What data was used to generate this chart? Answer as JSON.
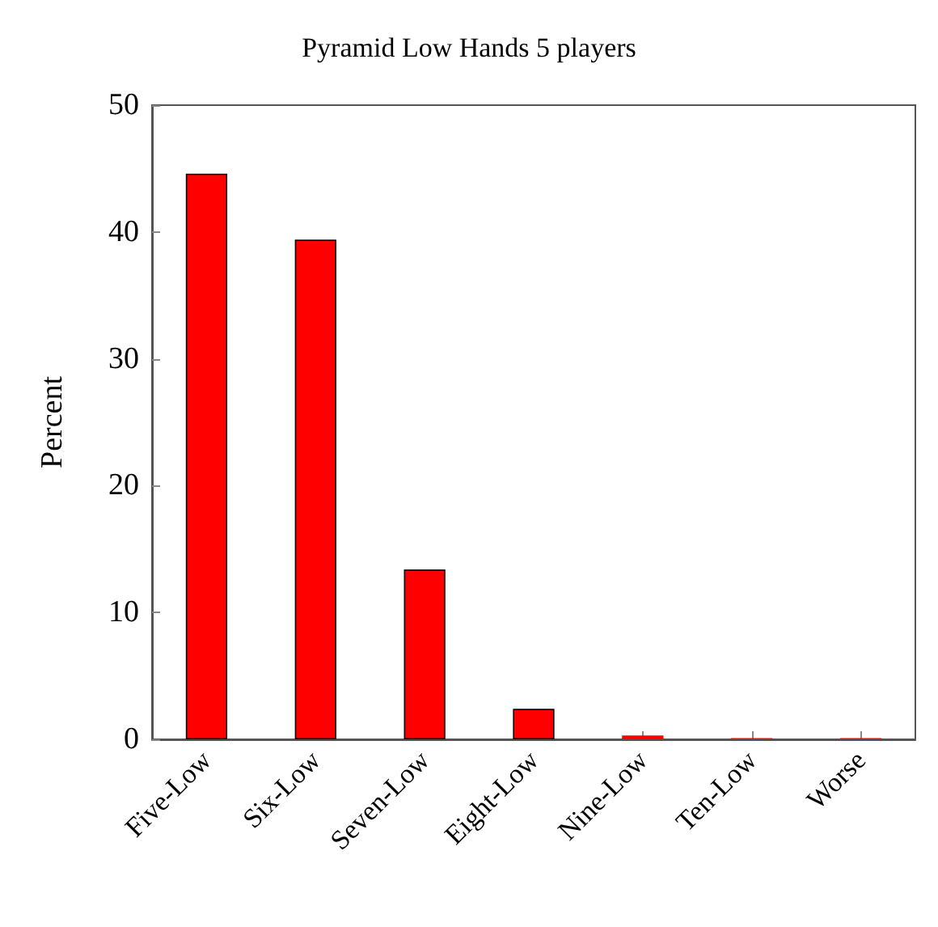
{
  "chart_data": {
    "type": "bar",
    "title": "Pyramid Low Hands 5 players",
    "ylabel": "Percent",
    "categories": [
      "Five-Low",
      "Six-Low",
      "Seven-Low",
      "Eight-Low",
      "Nine-Low",
      "Ten-Low",
      "Worse"
    ],
    "values": [
      44.6,
      39.4,
      13.4,
      2.4,
      0.3,
      0.1,
      0.1
    ],
    "color": "#ff0000",
    "ylim": [
      0,
      50
    ],
    "yticks": [
      0,
      10,
      20,
      30,
      40,
      50
    ],
    "grid": false
  }
}
